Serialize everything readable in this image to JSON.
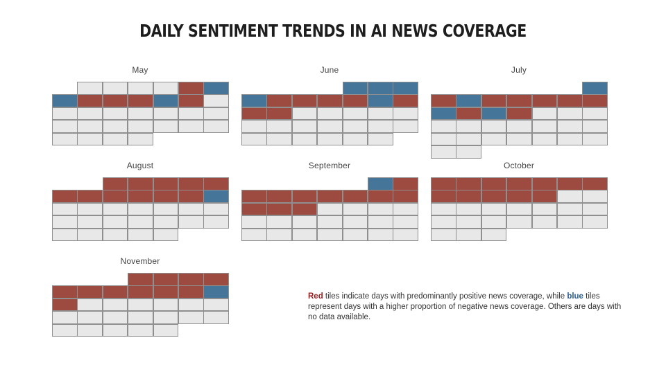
{
  "title": "DAILY SENTIMENT TRENDS IN AI NEWS COVERAGE",
  "colors": {
    "positive": "#9d4a40",
    "negative": "#457599",
    "no_data": "#e8e8e8",
    "red_keyword": "#9b1c1c",
    "blue_keyword": "#2b5e91"
  },
  "chart_data": {
    "type": "heatmap",
    "layout": "calendar",
    "legend_values": {
      "1": "positive",
      "-1": "negative",
      "0": "no data"
    },
    "months": [
      {
        "name": "May",
        "start_col": 1,
        "days": [
          0,
          0,
          0,
          0,
          1,
          -1,
          -1,
          1,
          1,
          1,
          -1,
          1,
          0,
          0,
          0,
          0,
          0,
          0,
          0,
          0,
          0,
          0,
          0,
          0,
          0,
          0,
          0,
          0,
          0,
          0,
          0
        ]
      },
      {
        "name": "June",
        "start_col": 4,
        "days": [
          -1,
          -1,
          -1,
          -1,
          1,
          1,
          1,
          1,
          -1,
          1,
          1,
          1,
          0,
          0,
          0,
          0,
          0,
          0,
          0,
          0,
          0,
          0,
          0,
          0,
          0,
          0,
          0,
          0,
          0,
          0
        ]
      },
      {
        "name": "July",
        "start_col": 6,
        "days": [
          -1,
          1,
          -1,
          1,
          1,
          1,
          1,
          1,
          -1,
          1,
          -1,
          1,
          0,
          0,
          0,
          0,
          0,
          0,
          0,
          0,
          0,
          0,
          0,
          0,
          0,
          0,
          0,
          0,
          0,
          0,
          0
        ]
      },
      {
        "name": "August",
        "start_col": 2,
        "days": [
          1,
          1,
          1,
          1,
          1,
          1,
          1,
          1,
          1,
          1,
          1,
          -1,
          0,
          0,
          0,
          0,
          0,
          0,
          0,
          0,
          0,
          0,
          0,
          0,
          0,
          0,
          0,
          0,
          0,
          0,
          0
        ]
      },
      {
        "name": "September",
        "start_col": 5,
        "days": [
          -1,
          1,
          1,
          1,
          1,
          1,
          1,
          1,
          1,
          1,
          1,
          1,
          0,
          0,
          0,
          0,
          0,
          0,
          0,
          0,
          0,
          0,
          0,
          0,
          0,
          0,
          0,
          0,
          0,
          0
        ]
      },
      {
        "name": "October",
        "start_col": 0,
        "days": [
          1,
          1,
          1,
          1,
          1,
          1,
          1,
          1,
          1,
          1,
          1,
          1,
          0,
          0,
          0,
          0,
          0,
          0,
          0,
          0,
          0,
          0,
          0,
          0,
          0,
          0,
          0,
          0,
          0,
          0,
          0
        ]
      },
      {
        "name": "November",
        "start_col": 3,
        "days": [
          1,
          1,
          1,
          1,
          1,
          1,
          1,
          1,
          1,
          1,
          -1,
          1,
          0,
          0,
          0,
          0,
          0,
          0,
          0,
          0,
          0,
          0,
          0,
          0,
          0,
          0,
          0,
          0,
          0,
          0
        ]
      }
    ]
  },
  "legend": {
    "red_word": "Red",
    "text_part1": " tiles indicate days with predominantly positive news coverage, while ",
    "blue_word": "blue",
    "text_part2": " tiles represent days with a higher proportion of negative news coverage. Others are days with no data available."
  }
}
